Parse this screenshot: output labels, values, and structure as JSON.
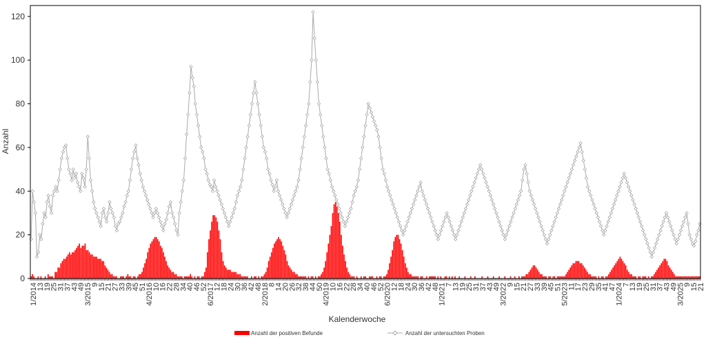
{
  "chart_data": {
    "type": "bar+line",
    "xlabel": "Kalenderwoche",
    "ylabel": "Anzahl",
    "ylim": [
      0,
      125
    ],
    "yticks": [
      0,
      20,
      40,
      60,
      80,
      100,
      120
    ],
    "legend_position": "bottom",
    "grid": false,
    "colors": {
      "positive": "#ff0000",
      "tested": "#a9a9a9"
    },
    "x_tick_labels": [
      "1/2014",
      "13",
      "19",
      "25",
      "31",
      "37",
      "43",
      "49",
      "3/2015",
      "9",
      "15",
      "21",
      "27",
      "33",
      "39",
      "45",
      "51",
      "4/2016",
      "10",
      "16",
      "22",
      "28",
      "34",
      "40",
      "46",
      "52",
      "6/2017",
      "12",
      "18",
      "24",
      "30",
      "36",
      "42",
      "48",
      "2/2018",
      "8",
      "14",
      "20",
      "26",
      "32",
      "38",
      "44",
      "50",
      "4/2019",
      "10",
      "16",
      "22",
      "28",
      "34",
      "40",
      "46",
      "52",
      "6/2020",
      "12",
      "18",
      "24",
      "30",
      "36",
      "42",
      "48",
      "1/2021",
      "7",
      "13",
      "19",
      "25",
      "31",
      "37",
      "43",
      "49",
      "3/2022",
      "9",
      "15",
      "21",
      "27",
      "33",
      "39",
      "45",
      "51",
      "5/2023",
      "11",
      "17",
      "23",
      "29",
      "35",
      "41",
      "47",
      "1/2024",
      "7",
      "13",
      "19",
      "25",
      "31",
      "37",
      "43",
      "49",
      "3/2025",
      "9",
      "15",
      "21"
    ],
    "series": [
      {
        "name": "Anzahl der positiven Befunde",
        "kind": "bar",
        "values": [
          1,
          2,
          1,
          0,
          0,
          1,
          0,
          1,
          0,
          0,
          1,
          0,
          2,
          1,
          1,
          1,
          0,
          3,
          3,
          5,
          5,
          7,
          8,
          9,
          9,
          10,
          11,
          12,
          11,
          12,
          12,
          13,
          14,
          15,
          16,
          14,
          15,
          15,
          16,
          13,
          13,
          12,
          11,
          11,
          10,
          10,
          10,
          9,
          9,
          9,
          8,
          8,
          6,
          5,
          4,
          3,
          2,
          2,
          1,
          1,
          1,
          0,
          0,
          1,
          1,
          1,
          0,
          1,
          2,
          1,
          1,
          0,
          1,
          1,
          0,
          1,
          2,
          2,
          3,
          5,
          7,
          9,
          12,
          14,
          16,
          17,
          18,
          19,
          19,
          18,
          17,
          15,
          14,
          12,
          10,
          8,
          6,
          5,
          4,
          3,
          3,
          2,
          2,
          1,
          1,
          1,
          1,
          0,
          1,
          1,
          1,
          1,
          2,
          1,
          0,
          1,
          0,
          1,
          1,
          0,
          1,
          1,
          3,
          5,
          12,
          18,
          22,
          26,
          29,
          29,
          28,
          26,
          22,
          18,
          12,
          8,
          6,
          5,
          4,
          4,
          4,
          3,
          3,
          3,
          3,
          2,
          2,
          2,
          1,
          1,
          1,
          1,
          1,
          0,
          0,
          1,
          0,
          1,
          1,
          0,
          1,
          0,
          1,
          1,
          2,
          3,
          5,
          8,
          10,
          12,
          14,
          16,
          17,
          18,
          19,
          18,
          17,
          15,
          13,
          11,
          8,
          6,
          5,
          4,
          3,
          3,
          2,
          2,
          1,
          1,
          1,
          1,
          1,
          1,
          0,
          1,
          0,
          1,
          1,
          0,
          1,
          0,
          1,
          1,
          2,
          3,
          5,
          8,
          12,
          16,
          20,
          24,
          30,
          34,
          35,
          33,
          30,
          26,
          20,
          15,
          11,
          8,
          5,
          3,
          2,
          1,
          1,
          1,
          0,
          1,
          0,
          0,
          1,
          0,
          1,
          1,
          0,
          0,
          1,
          1,
          1,
          0,
          0,
          1,
          0,
          1,
          1,
          0,
          1,
          1,
          2,
          4,
          7,
          10,
          13,
          17,
          19,
          20,
          20,
          18,
          16,
          13,
          10,
          7,
          5,
          3,
          2,
          2,
          1,
          1,
          1,
          1,
          1,
          0,
          1,
          1,
          0,
          0,
          1,
          0,
          1,
          1,
          1,
          1,
          1,
          0,
          1,
          0,
          1,
          0,
          0,
          1,
          1,
          0,
          1,
          0,
          1,
          0,
          1,
          0,
          0,
          1,
          0,
          0,
          0,
          1,
          0,
          0,
          0,
          1,
          0,
          0,
          1,
          0,
          0,
          0,
          0,
          1,
          0,
          0,
          0,
          1,
          0,
          0,
          0,
          1,
          0,
          0,
          0,
          1,
          0,
          0,
          0,
          1,
          0,
          0,
          0,
          1,
          0,
          0,
          1,
          0,
          0,
          1,
          0,
          1,
          1,
          1,
          2,
          2,
          3,
          4,
          5,
          6,
          6,
          5,
          4,
          3,
          2,
          2,
          1,
          1,
          1,
          0,
          1,
          1,
          0,
          1,
          1,
          0,
          1,
          1,
          1,
          1,
          1,
          1,
          2,
          3,
          4,
          5,
          6,
          7,
          7,
          8,
          8,
          8,
          7,
          7,
          6,
          5,
          4,
          3,
          2,
          2,
          1,
          1,
          1,
          1,
          0,
          1,
          0,
          1,
          1,
          0,
          1,
          1,
          2,
          3,
          4,
          5,
          6,
          7,
          8,
          9,
          10,
          9,
          8,
          7,
          6,
          4,
          3,
          2,
          2,
          1,
          1,
          1,
          0,
          1,
          1,
          0,
          1,
          1,
          1,
          0,
          1,
          0,
          1,
          1,
          2,
          3,
          4,
          5,
          6,
          7,
          8,
          9,
          9,
          8,
          6,
          5,
          4,
          3,
          2,
          1,
          1,
          1,
          1,
          1,
          1,
          1,
          1,
          1,
          1,
          1,
          1,
          1,
          1,
          1,
          1,
          1,
          1
        ]
      },
      {
        "name": "Anzahl der untersuchten Proben",
        "kind": "line",
        "values": [
          18,
          40,
          35,
          30,
          10,
          12,
          20,
          18,
          25,
          30,
          28,
          35,
          38,
          33,
          30,
          38,
          40,
          42,
          40,
          45,
          50,
          55,
          58,
          60,
          61,
          55,
          50,
          48,
          45,
          50,
          46,
          48,
          44,
          42,
          40,
          48,
          46,
          42,
          50,
          65,
          55,
          45,
          40,
          35,
          32,
          30,
          28,
          26,
          24,
          30,
          32,
          28,
          26,
          30,
          35,
          32,
          30,
          28,
          24,
          22,
          25,
          26,
          28,
          30,
          33,
          35,
          38,
          40,
          45,
          50,
          55,
          58,
          61,
          55,
          52,
          48,
          45,
          42,
          40,
          38,
          36,
          34,
          32,
          30,
          28,
          30,
          32,
          30,
          28,
          26,
          24,
          22,
          25,
          27,
          30,
          33,
          35,
          30,
          28,
          25,
          22,
          20,
          30,
          35,
          40,
          45,
          55,
          66,
          75,
          85,
          97,
          92,
          88,
          80,
          75,
          70,
          65,
          60,
          58,
          55,
          50,
          48,
          45,
          43,
          42,
          40,
          45,
          42,
          40,
          38,
          36,
          34,
          32,
          30,
          28,
          26,
          24,
          26,
          28,
          30,
          32,
          35,
          38,
          40,
          42,
          45,
          50,
          55,
          60,
          65,
          70,
          75,
          80,
          85,
          90,
          85,
          80,
          75,
          70,
          65,
          60,
          58,
          55,
          50,
          48,
          45,
          43,
          40,
          42,
          45,
          40,
          38,
          36,
          34,
          32,
          30,
          28,
          30,
          32,
          34,
          36,
          38,
          40,
          42,
          45,
          50,
          55,
          60,
          65,
          70,
          75,
          80,
          90,
          100,
          122,
          110,
          100,
          90,
          80,
          75,
          70,
          65,
          60,
          55,
          50,
          48,
          45,
          42,
          40,
          38,
          36,
          34,
          32,
          30,
          28,
          26,
          24,
          26,
          28,
          30,
          32,
          35,
          38,
          40,
          42,
          45,
          50,
          55,
          60,
          65,
          70,
          75,
          80,
          78,
          76,
          74,
          72,
          70,
          68,
          65,
          60,
          55,
          50,
          48,
          45,
          42,
          40,
          38,
          36,
          34,
          32,
          30,
          28,
          26,
          24,
          22,
          20,
          22,
          24,
          26,
          28,
          30,
          32,
          34,
          36,
          38,
          40,
          42,
          44,
          40,
          38,
          36,
          34,
          32,
          30,
          28,
          26,
          24,
          22,
          20,
          18,
          20,
          22,
          24,
          26,
          28,
          30,
          28,
          26,
          24,
          22,
          20,
          18,
          20,
          22,
          24,
          26,
          28,
          30,
          32,
          34,
          36,
          38,
          40,
          42,
          44,
          46,
          48,
          50,
          52,
          50,
          48,
          46,
          44,
          42,
          40,
          38,
          36,
          34,
          32,
          30,
          28,
          26,
          24,
          22,
          20,
          18,
          20,
          22,
          24,
          26,
          28,
          30,
          32,
          34,
          36,
          38,
          40,
          45,
          50,
          52,
          48,
          44,
          40,
          38,
          36,
          34,
          32,
          30,
          28,
          26,
          24,
          22,
          20,
          18,
          16,
          18,
          20,
          22,
          24,
          26,
          28,
          30,
          32,
          34,
          36,
          38,
          40,
          42,
          44,
          46,
          48,
          50,
          52,
          54,
          56,
          58,
          60,
          62,
          58,
          54,
          50,
          46,
          42,
          40,
          38,
          36,
          34,
          32,
          30,
          28,
          26,
          24,
          22,
          20,
          22,
          24,
          26,
          28,
          30,
          32,
          34,
          36,
          38,
          40,
          42,
          44,
          46,
          48,
          46,
          44,
          42,
          40,
          38,
          36,
          34,
          32,
          30,
          28,
          26,
          24,
          22,
          20,
          18,
          16,
          14,
          12,
          10,
          12,
          14,
          16,
          18,
          20,
          22,
          24,
          26,
          28,
          30,
          28,
          26,
          24,
          22,
          20,
          18,
          16,
          18,
          20,
          22,
          24,
          26,
          28,
          30,
          25,
          20,
          18,
          16,
          15,
          17,
          20,
          22,
          25
        ]
      }
    ]
  }
}
